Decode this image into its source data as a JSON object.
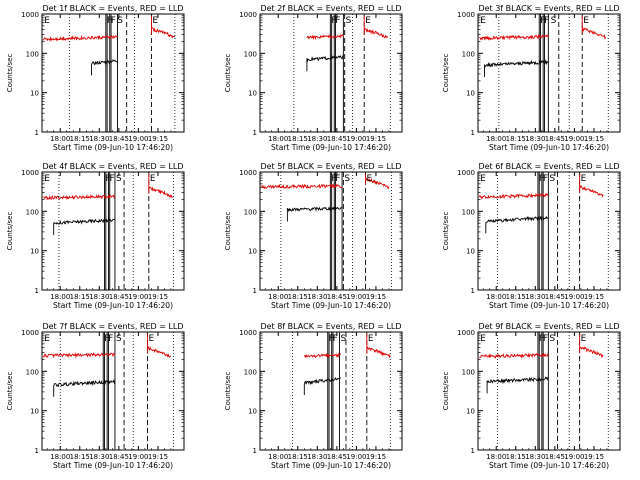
{
  "chart_data": [
    {
      "type": "line",
      "title": "Det 1f BLACK = Events, RED = LLD",
      "xlabel": "Start Time (09-Jun-10 17:46:20)",
      "ylabel": "Counts/sec",
      "yscale": "log",
      "ylim": [
        1,
        1000
      ],
      "x_ticks": [
        "18:00",
        "18:15",
        "18:30",
        "18:45",
        "19:00",
        "19:15"
      ],
      "y_ticks": [
        "1",
        "10",
        "100",
        "1000"
      ],
      "series": [
        {
          "name": "Events",
          "color": "#000000",
          "start": "18:24",
          "end": "18:44",
          "level": 55,
          "end_level": 65
        },
        {
          "name": "LLD",
          "color": "#e00000",
          "start": "17:47",
          "end": "18:44",
          "level": 230,
          "end_level": 260,
          "resume": "19:10",
          "resume_level": 300
        }
      ],
      "markers": [
        {
          "label": "E",
          "time": "17:47"
        },
        {
          "label": "F",
          "time": "18:35"
        },
        {
          "label": "F",
          "time": "18:38"
        },
        {
          "label": "S",
          "time": "18:43"
        },
        {
          "label": "E",
          "time": "19:10"
        }
      ],
      "dotted_lines": [
        "18:07",
        "18:57",
        "19:28"
      ],
      "dashed_lines": [
        "18:51",
        "19:10"
      ],
      "solid_lines": [
        "18:35",
        "18:36",
        "18:38",
        "18:39",
        "18:44"
      ]
    },
    {
      "type": "line",
      "title": "Det 2f BLACK = Events, RED = LLD",
      "xlabel": "Start Time (09-Jun-10 17:46:20)",
      "ylabel": "Counts/sec",
      "yscale": "log",
      "ylim": [
        1,
        1000
      ],
      "x_ticks": [
        "18:00",
        "18:15",
        "18:30",
        "18:45",
        "19:00",
        "19:15"
      ],
      "y_ticks": [
        "1",
        "10",
        "100",
        "1000"
      ],
      "series": [
        {
          "name": "Events",
          "color": "#000000",
          "start": "18:22",
          "end": "18:50",
          "level": 70,
          "end_level": 80
        },
        {
          "name": "LLD",
          "color": "#e00000",
          "start": "18:22",
          "end": "18:50",
          "level": 250,
          "end_level": 280,
          "resume": "19:06",
          "resume_level": 290
        }
      ],
      "markers": [
        {
          "label": "F",
          "time": "18:40"
        },
        {
          "label": "F",
          "time": "18:43"
        },
        {
          "label": "S",
          "time": "18:51"
        },
        {
          "label": "E",
          "time": "19:06"
        }
      ],
      "dotted_lines": [
        "18:12",
        "18:57",
        "19:26"
      ],
      "dashed_lines": [
        "18:51",
        "19:06"
      ],
      "solid_lines": [
        "18:40",
        "18:41",
        "18:43",
        "18:44",
        "18:50"
      ]
    },
    {
      "type": "line",
      "title": "Det 3f BLACK = Events, RED = LLD",
      "xlabel": "Start Time (09-Jun-10 17:46:20)",
      "ylabel": "Counts/sec",
      "yscale": "log",
      "ylim": [
        1,
        1000
      ],
      "x_ticks": [
        "18:00",
        "18:15",
        "18:30",
        "18:45",
        "19:00",
        "19:15"
      ],
      "y_ticks": [
        "1",
        "10",
        "100",
        "1000"
      ],
      "series": [
        {
          "name": "Events",
          "color": "#000000",
          "start": "17:51",
          "end": "18:40",
          "level": 50,
          "end_level": 60
        },
        {
          "name": "LLD",
          "color": "#e00000",
          "start": "17:47",
          "end": "18:40",
          "level": 240,
          "end_level": 270,
          "resume": "19:06",
          "resume_level": 300
        }
      ],
      "markers": [
        {
          "label": "E",
          "time": "17:47"
        },
        {
          "label": "F",
          "time": "18:33"
        },
        {
          "label": "F",
          "time": "18:36"
        },
        {
          "label": "S",
          "time": "18:41"
        },
        {
          "label": "E",
          "time": "19:06"
        }
      ],
      "dotted_lines": [
        "18:02",
        "18:56",
        "19:26"
      ],
      "dashed_lines": [
        "18:48",
        "19:06"
      ],
      "solid_lines": [
        "18:33",
        "18:34",
        "18:36",
        "18:37",
        "18:40"
      ]
    },
    {
      "type": "line",
      "title": "Det 4f BLACK = Events, RED = LLD",
      "xlabel": "Start Time (09-Jun-10 17:46:20)",
      "ylabel": "Counts/sec",
      "yscale": "log",
      "ylim": [
        1,
        1000
      ],
      "x_ticks": [
        "18:00",
        "18:15",
        "18:30",
        "18:45",
        "19:00",
        "19:15"
      ],
      "y_ticks": [
        "1",
        "10",
        "100",
        "1000"
      ],
      "series": [
        {
          "name": "Events",
          "color": "#000000",
          "start": "17:55",
          "end": "18:42",
          "level": 50,
          "end_level": 60
        },
        {
          "name": "LLD",
          "color": "#e00000",
          "start": "17:47",
          "end": "18:42",
          "level": 220,
          "end_level": 240,
          "resume": "19:08",
          "resume_level": 280
        }
      ],
      "markers": [
        {
          "label": "E",
          "time": "17:47"
        },
        {
          "label": "F",
          "time": "18:34"
        },
        {
          "label": "F",
          "time": "18:37"
        },
        {
          "label": "S",
          "time": "18:42"
        },
        {
          "label": "E",
          "time": "19:08"
        }
      ],
      "dotted_lines": [
        "17:59",
        "18:56",
        "19:27"
      ],
      "dashed_lines": [
        "18:49",
        "19:08"
      ],
      "solid_lines": [
        "18:34",
        "18:35",
        "18:37",
        "18:38",
        "18:42"
      ]
    },
    {
      "type": "line",
      "title": "Det 5f BLACK = Events, RED = LLD",
      "xlabel": "Start Time (09-Jun-10 17:46:20)",
      "ylabel": "Counts/sec",
      "yscale": "log",
      "ylim": [
        1,
        1000
      ],
      "x_ticks": [
        "18:00",
        "18:15",
        "18:30",
        "18:45",
        "19:00",
        "19:15"
      ],
      "y_ticks": [
        "1",
        "10",
        "100",
        "1000"
      ],
      "series": [
        {
          "name": "Events",
          "color": "#000000",
          "start": "18:07",
          "end": "18:49",
          "level": 110,
          "end_level": 120
        },
        {
          "name": "LLD",
          "color": "#e00000",
          "start": "17:47",
          "end": "18:49",
          "level": 420,
          "end_level": 440,
          "resume": "19:07",
          "resume_level": 480
        }
      ],
      "markers": [
        {
          "label": "F",
          "time": "18:40"
        },
        {
          "label": "F",
          "time": "18:43"
        },
        {
          "label": "S",
          "time": "18:50"
        },
        {
          "label": "E",
          "time": "19:07"
        }
      ],
      "dotted_lines": [
        "18:02",
        "18:57",
        "19:27"
      ],
      "dashed_lines": [
        "18:50",
        "19:07"
      ],
      "solid_lines": [
        "18:40",
        "18:41",
        "18:43",
        "18:44",
        "18:49"
      ]
    },
    {
      "type": "line",
      "title": "Det 6f BLACK = Events, RED = LLD",
      "xlabel": "Start Time (09-Jun-10 17:46:20)",
      "ylabel": "Counts/sec",
      "yscale": "log",
      "ylim": [
        1,
        1000
      ],
      "x_ticks": [
        "18:00",
        "18:15",
        "18:30",
        "18:45",
        "19:00",
        "19:15"
      ],
      "y_ticks": [
        "1",
        "10",
        "100",
        "1000"
      ],
      "series": [
        {
          "name": "Events",
          "color": "#000000",
          "start": "17:52",
          "end": "18:40",
          "level": 55,
          "end_level": 70
        },
        {
          "name": "LLD",
          "color": "#e00000",
          "start": "17:47",
          "end": "18:40",
          "level": 230,
          "end_level": 260,
          "resume": "19:04",
          "resume_level": 300
        }
      ],
      "markers": [
        {
          "label": "E",
          "time": "17:47"
        },
        {
          "label": "F",
          "time": "18:32"
        },
        {
          "label": "F",
          "time": "18:35"
        },
        {
          "label": "S",
          "time": "18:40"
        },
        {
          "label": "E",
          "time": "19:04"
        }
      ],
      "dotted_lines": [
        "18:01",
        "18:56",
        "19:26"
      ],
      "dashed_lines": [
        "18:47",
        "19:04"
      ],
      "solid_lines": [
        "18:32",
        "18:33",
        "18:35",
        "18:36",
        "18:40"
      ]
    },
    {
      "type": "line",
      "title": "Det 7f BLACK = Events, RED = LLD",
      "xlabel": "Start Time (09-Jun-10 17:46:20)",
      "ylabel": "Counts/sec",
      "yscale": "log",
      "ylim": [
        1,
        1000
      ],
      "x_ticks": [
        "18:00",
        "18:15",
        "18:30",
        "18:45",
        "19:00",
        "19:15"
      ],
      "y_ticks": [
        "1",
        "10",
        "100",
        "1000"
      ],
      "series": [
        {
          "name": "Events",
          "color": "#000000",
          "start": "17:55",
          "end": "18:42",
          "level": 45,
          "end_level": 55
        },
        {
          "name": "LLD",
          "color": "#e00000",
          "start": "17:47",
          "end": "18:42",
          "level": 250,
          "end_level": 270,
          "resume": "19:07",
          "resume_level": 280
        }
      ],
      "markers": [
        {
          "label": "E",
          "time": "17:47"
        },
        {
          "label": "F",
          "time": "18:33"
        },
        {
          "label": "F",
          "time": "18:36"
        },
        {
          "label": "S",
          "time": "18:42"
        },
        {
          "label": "E",
          "time": "19:07"
        }
      ],
      "dotted_lines": [
        "18:00",
        "18:56",
        "19:27"
      ],
      "dashed_lines": [
        "18:49",
        "19:07"
      ],
      "solid_lines": [
        "18:33",
        "18:34",
        "18:36",
        "18:37",
        "18:42"
      ]
    },
    {
      "type": "line",
      "title": "Det 8f BLACK = Events, RED = LLD",
      "xlabel": "Start Time (09-Jun-10 17:46:20)",
      "ylabel": "Counts/sec",
      "yscale": "log",
      "ylim": [
        1,
        1000
      ],
      "x_ticks": [
        "18:00",
        "18:15",
        "18:30",
        "18:45",
        "19:00",
        "19:15"
      ],
      "y_ticks": [
        "1",
        "10",
        "100",
        "1000"
      ],
      "series": [
        {
          "name": "Events",
          "color": "#000000",
          "start": "18:20",
          "end": "18:48",
          "level": 50,
          "end_level": 65
        },
        {
          "name": "LLD",
          "color": "#e00000",
          "start": "18:20",
          "end": "18:48",
          "level": 240,
          "end_level": 260,
          "resume": "19:08",
          "resume_level": 280
        }
      ],
      "markers": [
        {
          "label": "F",
          "time": "18:38"
        },
        {
          "label": "F",
          "time": "18:41"
        },
        {
          "label": "S",
          "time": "18:47"
        },
        {
          "label": "E",
          "time": "19:08"
        }
      ],
      "dotted_lines": [
        "18:11",
        "18:57",
        "19:26"
      ],
      "dashed_lines": [
        "18:52",
        "19:08"
      ],
      "solid_lines": [
        "18:38",
        "18:39",
        "18:41",
        "18:42",
        "18:47"
      ]
    },
    {
      "type": "line",
      "title": "Det 9f BLACK = Events, RED = LLD",
      "xlabel": "Start Time (09-Jun-10 17:46:20)",
      "ylabel": "Counts/sec",
      "yscale": "log",
      "ylim": [
        1,
        1000
      ],
      "x_ticks": [
        "18:00",
        "18:15",
        "18:30",
        "18:45",
        "19:00",
        "19:15"
      ],
      "y_ticks": [
        "1",
        "10",
        "100",
        "1000"
      ],
      "series": [
        {
          "name": "Events",
          "color": "#000000",
          "start": "17:53",
          "end": "18:40",
          "level": 55,
          "end_level": 65
        },
        {
          "name": "LLD",
          "color": "#e00000",
          "start": "17:47",
          "end": "18:40",
          "level": 240,
          "end_level": 260,
          "resume": "19:04",
          "resume_level": 290
        }
      ],
      "markers": [
        {
          "label": "E",
          "time": "17:47"
        },
        {
          "label": "F",
          "time": "18:32"
        },
        {
          "label": "F",
          "time": "18:35"
        },
        {
          "label": "S",
          "time": "18:40"
        },
        {
          "label": "E",
          "time": "19:04"
        }
      ],
      "dotted_lines": [
        "18:01",
        "18:56",
        "19:26"
      ],
      "dashed_lines": [
        "18:47",
        "19:04"
      ],
      "solid_lines": [
        "18:32",
        "18:33",
        "18:35",
        "18:36",
        "18:40"
      ]
    }
  ]
}
